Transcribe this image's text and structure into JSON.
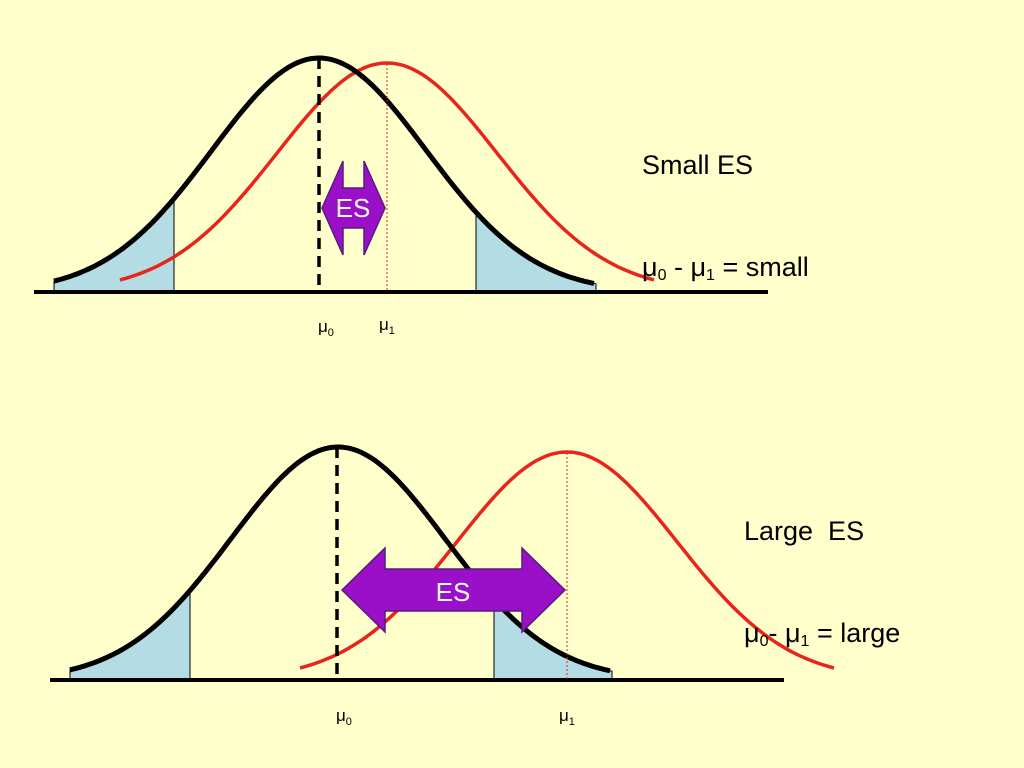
{
  "colors": {
    "background": "#ffffcc",
    "null_curve": "#000000",
    "alt_curve": "#e8241c",
    "rejection_region": "#b3dce4",
    "es_arrow": "#9a10c8",
    "es_arrow_outline": "#5a1a7a",
    "es_text": "#ffffff"
  },
  "panels": [
    {
      "effect": "small",
      "es_label": "ES",
      "mu0_label": "μ",
      "mu0_sub": "0",
      "mu1_label": "μ",
      "mu1_sub": "1",
      "title": "Small ES",
      "formula": {
        "a": "μ",
        "a_sub": "0",
        "sep": " - ",
        "b": "μ",
        "b_sub": "1",
        "rest": " = small"
      }
    },
    {
      "effect": "large",
      "es_label": "ES",
      "mu0_label": "μ",
      "mu0_sub": "0",
      "mu1_label": "μ",
      "mu1_sub": "1",
      "title": "Large  ES",
      "formula": {
        "a": "μ",
        "a_sub": "0",
        "sep": "- ",
        "b": "μ",
        "b_sub": "1",
        "rest": " = large"
      }
    }
  ]
}
